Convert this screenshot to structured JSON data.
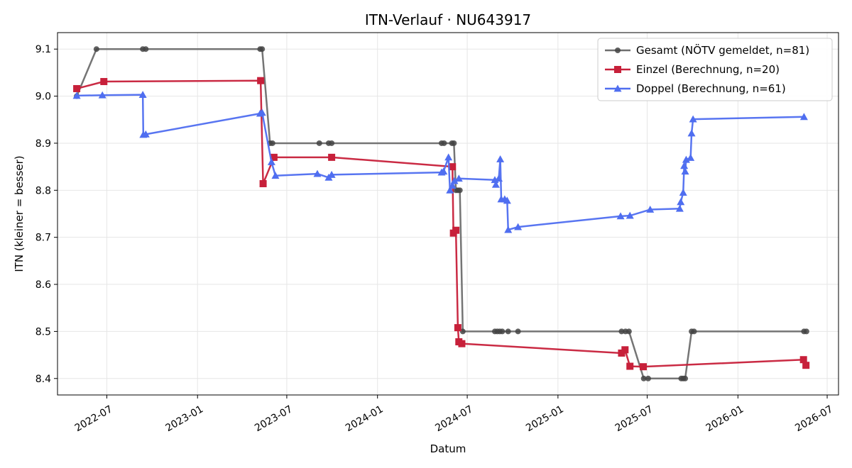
{
  "chart_data": {
    "type": "line",
    "title": "ITN-Verlauf · NU643917",
    "xlabel": "Datum",
    "ylabel": "ITN  (kleiner = besser)",
    "x_axis_type": "date",
    "xlim": [
      "2022-03-23",
      "2026-07-24"
    ],
    "ylim": [
      8.365,
      9.135
    ],
    "x_ticks": [
      "2022-07-01",
      "2023-01-01",
      "2023-07-01",
      "2024-01-01",
      "2024-07-01",
      "2025-01-01",
      "2025-07-01",
      "2026-01-01",
      "2026-07-01"
    ],
    "x_tick_labels": [
      "2022-07",
      "2023-01",
      "2023-07",
      "2024-01",
      "2024-07",
      "2025-01",
      "2025-07",
      "2026-01",
      "2026-07"
    ],
    "y_ticks": [
      8.4,
      8.5,
      8.6,
      8.7,
      8.8,
      8.9,
      9.0,
      9.1
    ],
    "y_tick_labels": [
      "8.4",
      "8.5",
      "8.6",
      "8.7",
      "8.8",
      "8.9",
      "9.0",
      "9.1"
    ],
    "grid": true,
    "legend_position": "top-right",
    "series": [
      {
        "name": "Gesamt (NÖTV gemeldet, n=81)",
        "color": "#6e6e6e",
        "marker_color": "#444444",
        "marker": "circle",
        "points": [
          [
            "2022-05-01",
            9.0
          ],
          [
            "2022-06-10",
            9.1
          ],
          [
            "2022-09-12",
            9.1
          ],
          [
            "2022-09-18",
            9.1
          ],
          [
            "2023-05-08",
            9.1
          ],
          [
            "2023-05-12",
            9.1
          ],
          [
            "2023-05-28",
            8.9
          ],
          [
            "2023-06-02",
            8.9
          ],
          [
            "2023-09-05",
            8.9
          ],
          [
            "2023-09-24",
            8.9
          ],
          [
            "2023-09-30",
            8.9
          ],
          [
            "2024-05-10",
            8.9
          ],
          [
            "2024-05-15",
            8.9
          ],
          [
            "2024-05-31",
            8.9
          ],
          [
            "2024-06-04",
            8.9
          ],
          [
            "2024-06-08",
            8.8
          ],
          [
            "2024-06-12",
            8.8
          ],
          [
            "2024-06-16",
            8.8
          ],
          [
            "2024-06-22",
            8.5
          ],
          [
            "2024-08-26",
            8.5
          ],
          [
            "2024-08-31",
            8.5
          ],
          [
            "2024-09-05",
            8.5
          ],
          [
            "2024-09-10",
            8.5
          ],
          [
            "2024-09-22",
            8.5
          ],
          [
            "2024-10-12",
            8.5
          ],
          [
            "2025-05-10",
            8.5
          ],
          [
            "2025-05-18",
            8.5
          ],
          [
            "2025-05-25",
            8.5
          ],
          [
            "2025-06-24",
            8.4
          ],
          [
            "2025-07-03",
            8.4
          ],
          [
            "2025-09-08",
            8.4
          ],
          [
            "2025-09-12",
            8.4
          ],
          [
            "2025-09-16",
            8.4
          ],
          [
            "2025-09-29",
            8.5
          ],
          [
            "2025-10-04",
            8.5
          ],
          [
            "2026-05-15",
            8.5
          ],
          [
            "2026-05-20",
            8.5
          ]
        ]
      },
      {
        "name": "Einzel (Berechnung, n=20)",
        "color": "#c7203a",
        "marker_color": "#c7203a",
        "marker": "square",
        "points": [
          [
            "2022-05-01",
            9.016
          ],
          [
            "2022-06-25",
            9.031
          ],
          [
            "2023-05-09",
            9.033
          ],
          [
            "2023-05-14",
            8.814
          ],
          [
            "2023-06-05",
            8.87
          ],
          [
            "2023-09-30",
            8.87
          ],
          [
            "2024-06-01",
            8.85
          ],
          [
            "2024-06-03",
            8.709
          ],
          [
            "2024-06-08",
            8.715
          ],
          [
            "2024-06-12",
            8.508
          ],
          [
            "2024-06-14",
            8.478
          ],
          [
            "2024-06-20",
            8.474
          ],
          [
            "2025-05-10",
            8.454
          ],
          [
            "2025-05-17",
            8.461
          ],
          [
            "2025-05-27",
            8.426
          ],
          [
            "2025-06-23",
            8.425
          ],
          [
            "2026-05-14",
            8.44
          ],
          [
            "2026-05-19",
            8.428
          ]
        ]
      },
      {
        "name": "Doppel (Berechnung, n=61)",
        "color": "#4f6ef0",
        "marker_color": "#4f6ef0",
        "marker": "triangle",
        "points": [
          [
            "2022-05-01",
            9.001
          ],
          [
            "2022-06-22",
            9.002
          ],
          [
            "2022-09-12",
            9.003
          ],
          [
            "2022-09-13",
            8.918
          ],
          [
            "2022-09-18",
            8.919
          ],
          [
            "2023-05-08",
            8.963
          ],
          [
            "2023-05-12",
            8.965
          ],
          [
            "2023-05-31",
            8.86
          ],
          [
            "2023-06-08",
            8.831
          ],
          [
            "2023-09-01",
            8.835
          ],
          [
            "2023-09-24",
            8.827
          ],
          [
            "2023-09-30",
            8.833
          ],
          [
            "2024-05-10",
            8.838
          ],
          [
            "2024-05-14",
            8.84
          ],
          [
            "2024-05-24",
            8.87
          ],
          [
            "2024-05-27",
            8.8
          ],
          [
            "2024-06-01",
            8.81
          ],
          [
            "2024-06-05",
            8.82
          ],
          [
            "2024-06-14",
            8.825
          ],
          [
            "2024-08-26",
            8.822
          ],
          [
            "2024-08-28",
            8.812
          ],
          [
            "2024-09-03",
            8.825
          ],
          [
            "2024-09-06",
            8.866
          ],
          [
            "2024-09-08",
            8.781
          ],
          [
            "2024-09-15",
            8.781
          ],
          [
            "2024-09-20",
            8.778
          ],
          [
            "2024-09-22",
            8.716
          ],
          [
            "2024-10-12",
            8.722
          ],
          [
            "2025-05-08",
            8.745
          ],
          [
            "2025-05-27",
            8.746
          ],
          [
            "2025-07-07",
            8.759
          ],
          [
            "2025-09-05",
            8.761
          ],
          [
            "2025-09-07",
            8.775
          ],
          [
            "2025-09-12",
            8.795
          ],
          [
            "2025-09-14",
            8.852
          ],
          [
            "2025-09-16",
            8.84
          ],
          [
            "2025-09-18",
            8.865
          ],
          [
            "2025-09-27",
            8.869
          ],
          [
            "2025-09-29",
            8.921
          ],
          [
            "2025-10-02",
            8.951
          ],
          [
            "2026-05-15",
            8.956
          ]
        ]
      }
    ]
  }
}
